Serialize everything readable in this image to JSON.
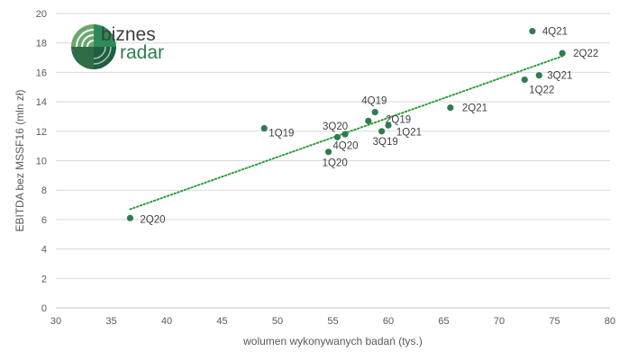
{
  "logo": {
    "line1": "biznes",
    "line2": "radar"
  },
  "chart_data": {
    "type": "scatter",
    "title": "",
    "xlabel": "wolumen wykonywanych badań  (tys.)",
    "ylabel": "EBITDA bez MSSF16  (mln zł)",
    "xlim": [
      30,
      80
    ],
    "ylim": [
      0,
      20
    ],
    "xticks": [
      30,
      35,
      40,
      45,
      50,
      55,
      60,
      65,
      70,
      75,
      80
    ],
    "yticks": [
      0,
      2,
      4,
      6,
      8,
      10,
      12,
      14,
      16,
      18,
      20
    ],
    "grid": "horizontal",
    "colors": {
      "points": "#2e7d4f",
      "trendline": "#2e9e3c",
      "grid": "#d9d9d9"
    },
    "trendline": {
      "style": "dotted",
      "x": [
        36.7,
        75.7
      ],
      "y": [
        6.7,
        17.1
      ]
    },
    "points": [
      {
        "label": "1Q19",
        "x": 48.8,
        "y": 12.2
      },
      {
        "label": "2Q19",
        "x": 60.0,
        "y": 12.4
      },
      {
        "label": "3Q19",
        "x": 59.4,
        "y": 12.0
      },
      {
        "label": "4Q19",
        "x": 58.8,
        "y": 13.3
      },
      {
        "label": "1Q20",
        "x": 54.6,
        "y": 10.6
      },
      {
        "label": "2Q20",
        "x": 36.7,
        "y": 6.1
      },
      {
        "label": "3Q20",
        "x": 56.1,
        "y": 11.8
      },
      {
        "label": "4Q20",
        "x": 55.4,
        "y": 11.6
      },
      {
        "label": "1Q21",
        "x": 58.2,
        "y": 12.7
      },
      {
        "label": "2Q21",
        "x": 65.6,
        "y": 13.6
      },
      {
        "label": "3Q21",
        "x": 73.6,
        "y": 15.8
      },
      {
        "label": "4Q21",
        "x": 73.0,
        "y": 18.8
      },
      {
        "label": "1Q22",
        "x": 72.3,
        "y": 15.5
      },
      {
        "label": "2Q22",
        "x": 75.7,
        "y": 17.3
      }
    ]
  }
}
